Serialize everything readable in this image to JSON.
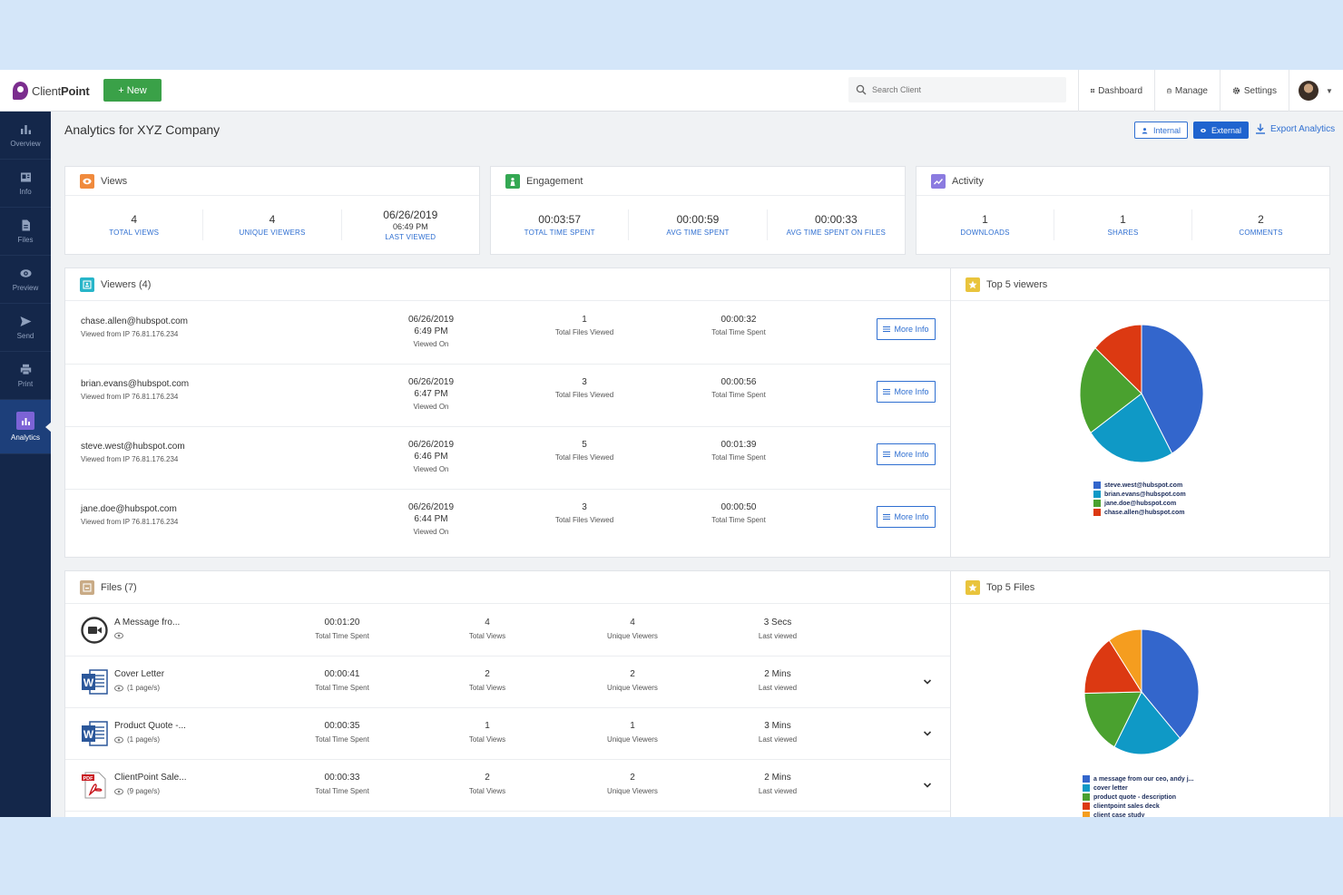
{
  "brand": {
    "logo_light": "Client",
    "logo_bold": "Point"
  },
  "topbar": {
    "new_label": "+ New",
    "search_placeholder": "Search Client",
    "nav": [
      {
        "label": "Dashboard",
        "icon": "dashboard-icon"
      },
      {
        "label": "Manage",
        "icon": "briefcase-icon"
      },
      {
        "label": "Settings",
        "icon": "gear-icon"
      }
    ]
  },
  "sidebar": {
    "items": [
      {
        "label": "Overview",
        "icon": "bar-chart-icon"
      },
      {
        "label": "Info",
        "icon": "info-card-icon"
      },
      {
        "label": "Files",
        "icon": "file-icon"
      },
      {
        "label": "Preview",
        "icon": "eye-icon"
      },
      {
        "label": "Send",
        "icon": "send-icon"
      },
      {
        "label": "Print",
        "icon": "printer-icon"
      },
      {
        "label": "Analytics",
        "icon": "analytics-icon",
        "active": true
      }
    ]
  },
  "header": {
    "title": "Analytics for XYZ Company",
    "internal_label": "Internal",
    "external_label": "External",
    "export_label": "Export Analytics"
  },
  "views": {
    "title": "Views",
    "stats": [
      {
        "value": "4",
        "label": "TOTAL VIEWS"
      },
      {
        "value": "4",
        "label": "UNIQUE VIEWERS"
      },
      {
        "value": "06/26/2019",
        "sub": "06:49 PM",
        "label": "LAST VIEWED"
      }
    ]
  },
  "engagement": {
    "title": "Engagement",
    "stats": [
      {
        "value": "00:03:57",
        "label": "TOTAL TIME SPENT"
      },
      {
        "value": "00:00:59",
        "label": "AVG TIME SPENT"
      },
      {
        "value": "00:00:33",
        "label": "AVG TIME SPENT ON FILES"
      }
    ]
  },
  "activity": {
    "title": "Activity",
    "stats": [
      {
        "value": "1",
        "label": "DOWNLOADS"
      },
      {
        "value": "1",
        "label": "SHARES"
      },
      {
        "value": "2",
        "label": "COMMENTS"
      }
    ]
  },
  "viewers": {
    "title": "Viewers (4)",
    "more_label": "More Info",
    "rows": [
      {
        "email": "chase.allen@hubspot.com",
        "ip": "Viewed from IP 76.81.176.234",
        "date": "06/26/2019",
        "time": "6:49 PM",
        "date_label": "Viewed On",
        "files": "1",
        "files_label": "Total Files Viewed",
        "spent": "00:00:32",
        "spent_label": "Total Time Spent"
      },
      {
        "email": "brian.evans@hubspot.com",
        "ip": "Viewed from IP 76.81.176.234",
        "date": "06/26/2019",
        "time": "6:47 PM",
        "date_label": "Viewed On",
        "files": "3",
        "files_label": "Total Files Viewed",
        "spent": "00:00:56",
        "spent_label": "Total Time Spent"
      },
      {
        "email": "steve.west@hubspot.com",
        "ip": "Viewed from IP 76.81.176.234",
        "date": "06/26/2019",
        "time": "6:46 PM",
        "date_label": "Viewed On",
        "files": "5",
        "files_label": "Total Files Viewed",
        "spent": "00:01:39",
        "spent_label": "Total Time Spent"
      },
      {
        "email": "jane.doe@hubspot.com",
        "ip": "Viewed from IP 76.81.176.234",
        "date": "06/26/2019",
        "time": "6:44 PM",
        "date_label": "Viewed On",
        "files": "3",
        "files_label": "Total Files Viewed",
        "spent": "00:00:50",
        "spent_label": "Total Time Spent"
      }
    ]
  },
  "top_viewers": {
    "title": "Top 5 viewers",
    "chart_data": {
      "type": "pie",
      "labels": [
        "steve.west@hubspot.com",
        "brian.evans@hubspot.com",
        "jane.doe@hubspot.com",
        "chase.allen@hubspot.com"
      ],
      "values": [
        99,
        56,
        50,
        32
      ],
      "colors": [
        "#3366cc",
        "#0f99c6",
        "#4aa12f",
        "#dc3912"
      ]
    }
  },
  "files": {
    "title": "Files (7)",
    "rows": [
      {
        "name": "A Message fro...",
        "type": "video",
        "meta": "",
        "spent": "00:01:20",
        "spent_label": "Total Time Spent",
        "views": "4",
        "views_label": "Total Views",
        "unique": "4",
        "unique_label": "Unique Viewers",
        "last": "3 Secs",
        "last_label": "Last viewed",
        "expand": false
      },
      {
        "name": "Cover Letter",
        "type": "word",
        "meta": "(1 page/s)",
        "spent": "00:00:41",
        "spent_label": "Total Time Spent",
        "views": "2",
        "views_label": "Total Views",
        "unique": "2",
        "unique_label": "Unique Viewers",
        "last": "2 Mins",
        "last_label": "Last viewed",
        "expand": true
      },
      {
        "name": "Product Quote -...",
        "type": "word",
        "meta": "(1 page/s)",
        "spent": "00:00:35",
        "spent_label": "Total Time Spent",
        "views": "1",
        "views_label": "Total Views",
        "unique": "1",
        "unique_label": "Unique Viewers",
        "last": "3 Mins",
        "last_label": "Last viewed",
        "expand": true
      },
      {
        "name": "ClientPoint Sale...",
        "type": "pdf",
        "meta": "(9 page/s)",
        "spent": "00:00:33",
        "spent_label": "Total Time Spent",
        "views": "2",
        "views_label": "Total Views",
        "unique": "2",
        "unique_label": "Unique Viewers",
        "last": "2 Mins",
        "last_label": "Last viewed",
        "expand": true
      }
    ]
  },
  "top_files": {
    "title": "Top 5 Files",
    "chart_data": {
      "type": "pie",
      "labels": [
        "a message from our ceo, andy j...",
        "cover letter",
        "product quote - description",
        "clientpoint sales deck",
        "client case study"
      ],
      "values": [
        80,
        41,
        35,
        33,
        20
      ],
      "colors": [
        "#3366cc",
        "#0f99c6",
        "#4aa12f",
        "#dc3912",
        "#f59d1f"
      ]
    }
  }
}
